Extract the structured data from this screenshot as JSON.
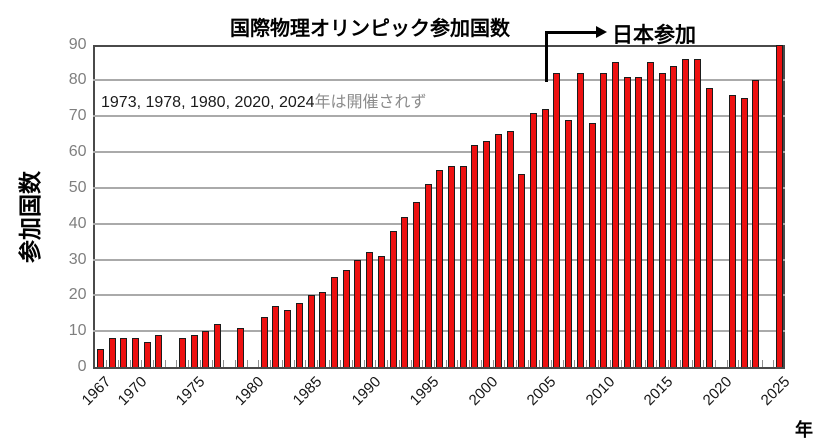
{
  "title": "国際物理オリンピック参加国数",
  "note": {
    "not_held_years_text": "1973, 1978, 1980, 2020, 2024",
    "suffix_text": "年は開催されず"
  },
  "annotation": {
    "label": "日本参加",
    "arrow_points_near_year": 2006
  },
  "y_axis": {
    "title": "参加国数",
    "ticks": [
      0,
      10,
      20,
      30,
      40,
      50,
      60,
      70,
      80,
      90
    ]
  },
  "x_axis": {
    "unit_label": "年",
    "tick_years": [
      1967,
      1970,
      1975,
      1980,
      1985,
      1990,
      1995,
      2000,
      2005,
      2010,
      2015,
      2020,
      2025
    ]
  },
  "colors": {
    "bar_fill": "#ee1111",
    "bar_border": "#1c1c1c",
    "gridline": "#aaaaaa",
    "plot_border": "#4a4a4a",
    "y_tick_text": "#7f7f7f",
    "note_gray_text": "#8c8c8c"
  },
  "chart_data": {
    "type": "bar",
    "title": "国際物理オリンピック参加国数",
    "xlabel": "年",
    "ylabel": "参加国数",
    "ylim": [
      0,
      90
    ],
    "grid": true,
    "not_held_years": [
      1973,
      1978,
      1980,
      2020,
      2024
    ],
    "years": [
      1967,
      1968,
      1969,
      1970,
      1971,
      1972,
      1973,
      1974,
      1975,
      1976,
      1977,
      1978,
      1979,
      1980,
      1981,
      1982,
      1983,
      1984,
      1985,
      1986,
      1987,
      1988,
      1989,
      1990,
      1991,
      1992,
      1993,
      1994,
      1995,
      1996,
      1997,
      1998,
      1999,
      2000,
      2001,
      2002,
      2003,
      2004,
      2005,
      2006,
      2007,
      2008,
      2009,
      2010,
      2011,
      2012,
      2013,
      2014,
      2015,
      2016,
      2017,
      2018,
      2019,
      2020,
      2021,
      2022,
      2023,
      2024,
      2025
    ],
    "values": [
      5,
      8,
      8,
      8,
      7,
      9,
      null,
      8,
      9,
      10,
      12,
      null,
      11,
      null,
      14,
      17,
      16,
      18,
      20,
      21,
      25,
      27,
      30,
      32,
      31,
      38,
      42,
      46,
      51,
      55,
      56,
      56,
      62,
      63,
      65,
      66,
      54,
      71,
      72,
      82,
      69,
      82,
      68,
      82,
      85,
      81,
      81,
      85,
      82,
      84,
      86,
      86,
      78,
      null,
      76,
      75,
      80,
      null,
      90
    ]
  }
}
